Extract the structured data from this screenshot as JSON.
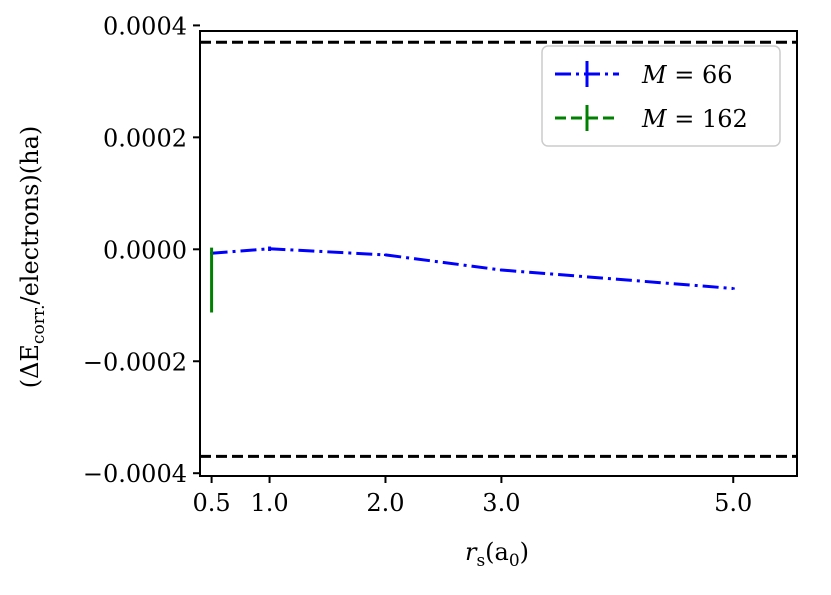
{
  "chart_data": {
    "type": "line",
    "xlabel": "r_s(a_0)",
    "ylabel": "(ΔE_corr./electrons)(ha)",
    "xlim": [
      0.4,
      5.55
    ],
    "ylim": [
      -0.000405,
      0.00039
    ],
    "xticks": [
      {
        "value": 0.5,
        "label": "0.5"
      },
      {
        "value": 1.0,
        "label": "1.0"
      },
      {
        "value": 2.0,
        "label": "2.0"
      },
      {
        "value": 3.0,
        "label": "3.0"
      },
      {
        "value": 5.0,
        "label": "5.0"
      }
    ],
    "yticks": [
      {
        "value": 0.0004,
        "label": "0.0004"
      },
      {
        "value": 0.0002,
        "label": "0.0002"
      },
      {
        "value": 0.0,
        "label": "0.0000"
      },
      {
        "value": -0.0002,
        "label": "−0.0002"
      },
      {
        "value": -0.0004,
        "label": "−0.0004"
      }
    ],
    "hlines": [
      {
        "y": 0.00037,
        "color": "#000000",
        "style": "dashed"
      },
      {
        "y": -0.00037,
        "color": "#000000",
        "style": "dashed"
      }
    ],
    "series": [
      {
        "name": "M = 66",
        "color": "#0000ff",
        "linestyle": "dashdot",
        "x": [
          0.5,
          1.0,
          2.0,
          3.0,
          5.0
        ],
        "y": [
          -7e-06,
          1e-06,
          -1e-05,
          -3.7e-05,
          -7e-05
        ],
        "yerr": [
          2e-06,
          4e-06,
          2e-06,
          2e-06,
          2e-06
        ]
      },
      {
        "name": "M = 162",
        "color": "#008000",
        "linestyle": "dashed",
        "x": [
          0.5
        ],
        "y": [
          -5.5e-05
        ],
        "yerr": [
          5.8e-05
        ]
      }
    ],
    "legend": {
      "position": "top-right",
      "entries": [
        "M = 66",
        "M = 162"
      ]
    },
    "grid": false
  }
}
